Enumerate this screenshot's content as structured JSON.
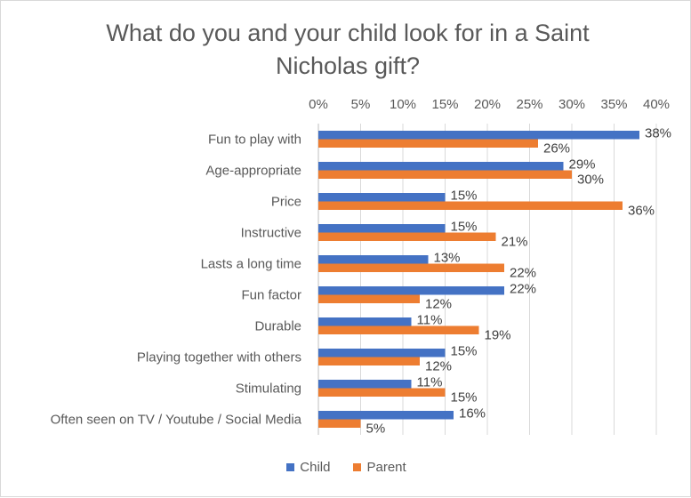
{
  "chart_data": {
    "type": "bar",
    "orientation": "horizontal",
    "title": "What do you and your child look for in a Saint Nicholas gift?",
    "categories": [
      "Fun to play with",
      "Age-appropriate",
      "Price",
      "Instructive",
      "Lasts a long time",
      "Fun factor",
      "Durable",
      "Playing together with others",
      "Stimulating",
      "Often seen on TV / Youtube / Social Media"
    ],
    "series": [
      {
        "name": "Child",
        "color": "#4472c4",
        "values": [
          38,
          29,
          15,
          15,
          13,
          22,
          11,
          15,
          11,
          16
        ]
      },
      {
        "name": "Parent",
        "color": "#ed7d31",
        "values": [
          26,
          30,
          36,
          21,
          22,
          12,
          19,
          12,
          15,
          5
        ]
      }
    ],
    "xlim": [
      0,
      40
    ],
    "x_ticks": [
      "0%",
      "5%",
      "10%",
      "15%",
      "20%",
      "25%",
      "30%",
      "35%",
      "40%"
    ],
    "x_axis_position": "top",
    "gridlines": true,
    "legend_position": "bottom",
    "data_labels": true,
    "value_suffix": "%"
  }
}
